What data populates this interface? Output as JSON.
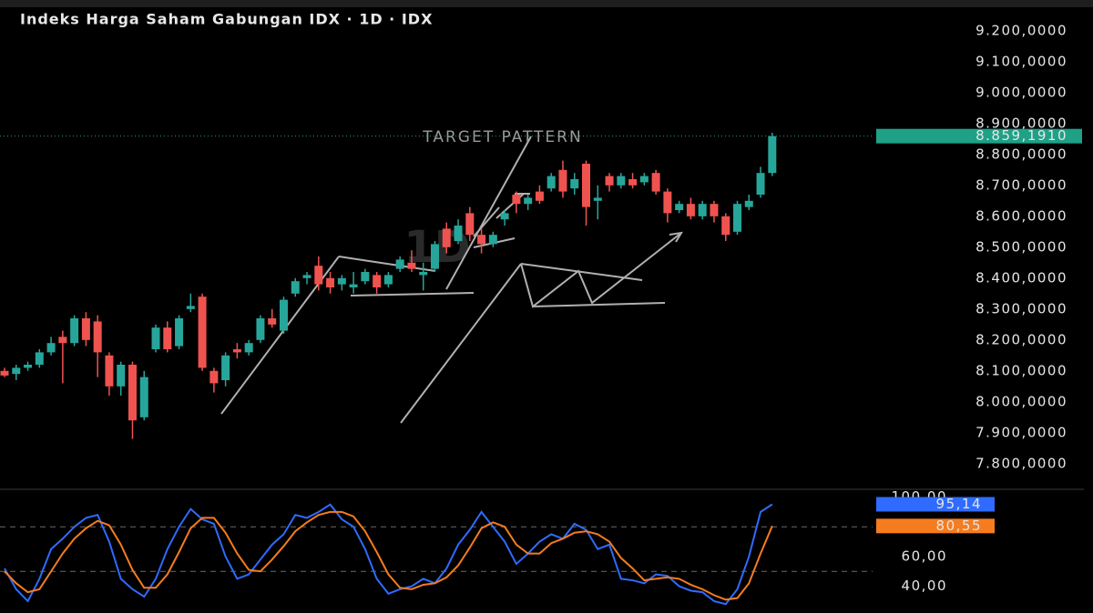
{
  "chart_data": [
    {
      "type": "candlestick",
      "title": "Indeks Harga Saham Gabungan IDX · 1D · IDX",
      "watermark": "1D",
      "annotation": "TARGET PATTERN",
      "up_color": "#26a69a",
      "down_color": "#ef5350",
      "open": [
        8100,
        8090,
        8110,
        8120,
        8160,
        8210,
        8190,
        8270,
        8260,
        8150,
        8050,
        8120,
        7950,
        8170,
        8240,
        8180,
        8300,
        8340,
        8100,
        8070,
        8170,
        8160,
        8200,
        8270,
        8230,
        8350,
        8400,
        8440,
        8400,
        8380,
        8370,
        8390,
        8410,
        8380,
        8430,
        8450,
        8410,
        8430,
        8560,
        8520,
        8610,
        8540,
        8510,
        8590,
        8670,
        8640,
        8680,
        8690,
        8750,
        8690,
        8770,
        8650,
        8730,
        8700,
        8720,
        8710,
        8740,
        8680,
        8620,
        8640,
        8600,
        8640,
        8600,
        8550,
        8630,
        8670,
        8740
      ],
      "high": [
        8110,
        8120,
        8130,
        8170,
        8210,
        8230,
        8280,
        8290,
        8280,
        8160,
        8130,
        8130,
        8100,
        8250,
        8260,
        8280,
        8350,
        8350,
        8110,
        8160,
        8190,
        8200,
        8280,
        8300,
        8340,
        8400,
        8420,
        8470,
        8420,
        8410,
        8420,
        8430,
        8420,
        8420,
        8470,
        8490,
        8450,
        8520,
        8580,
        8590,
        8630,
        8560,
        8550,
        8620,
        8680,
        8670,
        8700,
        8740,
        8780,
        8740,
        8780,
        8700,
        8740,
        8740,
        8740,
        8740,
        8750,
        8690,
        8650,
        8660,
        8650,
        8650,
        8610,
        8650,
        8670,
        8760,
        8870
      ],
      "low": [
        8080,
        8070,
        8100,
        8110,
        8150,
        8060,
        8180,
        8180,
        8080,
        8020,
        8020,
        7880,
        7940,
        8160,
        8160,
        8170,
        8290,
        8100,
        8030,
        8050,
        8140,
        8150,
        8190,
        8240,
        8220,
        8340,
        8380,
        8360,
        8350,
        8360,
        8350,
        8380,
        8350,
        8370,
        8420,
        8420,
        8360,
        8420,
        8480,
        8510,
        8520,
        8480,
        8500,
        8570,
        8610,
        8620,
        8640,
        8680,
        8660,
        8670,
        8570,
        8590,
        8680,
        8690,
        8690,
        8700,
        8670,
        8580,
        8610,
        8590,
        8590,
        8580,
        8520,
        8540,
        8620,
        8660,
        8730
      ],
      "close": [
        8085,
        8110,
        8120,
        8160,
        8190,
        8190,
        8270,
        8200,
        8160,
        8050,
        8120,
        7940,
        8080,
        8240,
        8170,
        8270,
        8310,
        8110,
        8060,
        8150,
        8160,
        8190,
        8270,
        8250,
        8330,
        8390,
        8410,
        8380,
        8370,
        8400,
        8380,
        8420,
        8370,
        8410,
        8460,
        8430,
        8420,
        8510,
        8500,
        8570,
        8540,
        8510,
        8540,
        8610,
        8640,
        8660,
        8650,
        8730,
        8680,
        8720,
        8630,
        8660,
        8700,
        8730,
        8700,
        8730,
        8680,
        8610,
        8640,
        8600,
        8640,
        8600,
        8540,
        8640,
        8650,
        8740,
        8859.191
      ],
      "last_price": {
        "value": 8859.191,
        "label": "8.859,1910"
      },
      "last_color": "#1fa187",
      "ylim": [
        7720,
        9270
      ],
      "yticks": [
        {
          "value": 9200,
          "label": "9.200,0000"
        },
        {
          "value": 9100,
          "label": "9.100,0000"
        },
        {
          "value": 9000,
          "label": "9.000,0000"
        },
        {
          "value": 8900,
          "label": "8.900,0000"
        },
        {
          "value": 8800,
          "label": "8.800,0000"
        },
        {
          "value": 8700,
          "label": "8.700,0000"
        },
        {
          "value": 8600,
          "label": "8.600,0000"
        },
        {
          "value": 8500,
          "label": "8.500,0000"
        },
        {
          "value": 8400,
          "label": "8.400,0000"
        },
        {
          "value": 8300,
          "label": "8.300,0000"
        },
        {
          "value": 8200,
          "label": "8.200,0000"
        },
        {
          "value": 8100,
          "label": "8.100,0000"
        },
        {
          "value": 8000,
          "label": "8.000,0000"
        },
        {
          "value": 7900,
          "label": "7.900,0000"
        },
        {
          "value": 7800,
          "label": "7.800,0000"
        }
      ]
    },
    {
      "type": "line",
      "ylim": [
        22,
        104
      ],
      "yticks": [
        {
          "value": 100,
          "label": "100,00"
        },
        {
          "value": 60,
          "label": "60,00"
        },
        {
          "value": 40,
          "label": "40,00"
        }
      ],
      "bands": [
        80,
        50
      ],
      "series": [
        {
          "color": "#2f6bff",
          "value_label": "95,14",
          "values": [
            52,
            38,
            30,
            45,
            65,
            72,
            80,
            86,
            88,
            70,
            45,
            38,
            33,
            45,
            65,
            80,
            92,
            85,
            82,
            60,
            45,
            48,
            58,
            68,
            75,
            88,
            86,
            90,
            95,
            85,
            80,
            65,
            45,
            35,
            38,
            40,
            45,
            42,
            52,
            68,
            78,
            90,
            80,
            70,
            55,
            62,
            70,
            75,
            72,
            82,
            78,
            65,
            68,
            45,
            44,
            42,
            48,
            47,
            40,
            37,
            36,
            30,
            28,
            38,
            60,
            90,
            95.14
          ]
        },
        {
          "color": "#f57c1f",
          "value_label": "80,55",
          "values": [
            50,
            42,
            36,
            38,
            50,
            62,
            72,
            79,
            84,
            81,
            68,
            51,
            39,
            39,
            48,
            63,
            79,
            86,
            86,
            76,
            62,
            51,
            50,
            58,
            67,
            77,
            83,
            88,
            90,
            90,
            87,
            77,
            63,
            48,
            39,
            38,
            41,
            42,
            46,
            54,
            66,
            79,
            83,
            80,
            68,
            62,
            62,
            69,
            72,
            76,
            77,
            75,
            70,
            59,
            52,
            44,
            45,
            46,
            45,
            41,
            38,
            34,
            31,
            32,
            42,
            62,
            80.55
          ]
        }
      ]
    }
  ]
}
